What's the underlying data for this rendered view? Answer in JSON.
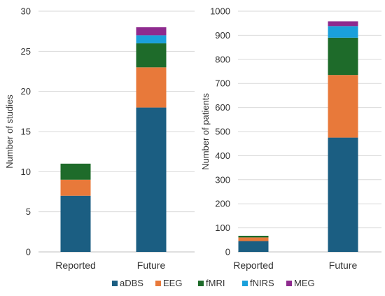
{
  "colors": {
    "aDBS": "#1b5e82",
    "EEG": "#e8793a",
    "fMRI": "#1e6b2a",
    "fNIRS": "#1aa0db",
    "MEG": "#8e2a8e"
  },
  "legend": {
    "placement": "bottom-center",
    "items": [
      "aDBS",
      "EEG",
      "fMRI",
      "fNIRS",
      "MEG"
    ]
  },
  "chart_data": [
    {
      "type": "bar",
      "stacked": true,
      "categories": [
        "Reported",
        "Future"
      ],
      "series": [
        {
          "name": "aDBS",
          "values": [
            7,
            18
          ]
        },
        {
          "name": "EEG",
          "values": [
            2,
            5
          ]
        },
        {
          "name": "fMRI",
          "values": [
            2,
            3
          ]
        },
        {
          "name": "fNIRS",
          "values": [
            0,
            1
          ]
        },
        {
          "name": "MEG",
          "values": [
            0,
            1
          ]
        }
      ],
      "title": "",
      "xlabel": "",
      "ylabel": "Number of studies",
      "ylim": [
        0,
        30
      ],
      "yticks": [
        "0",
        "5",
        "10",
        "15",
        "20",
        "25",
        "30"
      ],
      "grid": true
    },
    {
      "type": "bar",
      "stacked": true,
      "categories": [
        "Reported",
        "Future"
      ],
      "series": [
        {
          "name": "aDBS",
          "values": [
            45,
            475
          ]
        },
        {
          "name": "EEG",
          "values": [
            15,
            260
          ]
        },
        {
          "name": "fMRI",
          "values": [
            7,
            155
          ]
        },
        {
          "name": "fNIRS",
          "values": [
            0,
            48
          ]
        },
        {
          "name": "MEG",
          "values": [
            0,
            20
          ]
        }
      ],
      "title": "",
      "xlabel": "",
      "ylabel": "Number of patients",
      "ylim": [
        0,
        1000
      ],
      "yticks": [
        "0",
        "100",
        "200",
        "300",
        "400",
        "500",
        "600",
        "700",
        "800",
        "900",
        "1000"
      ],
      "grid": true
    }
  ]
}
